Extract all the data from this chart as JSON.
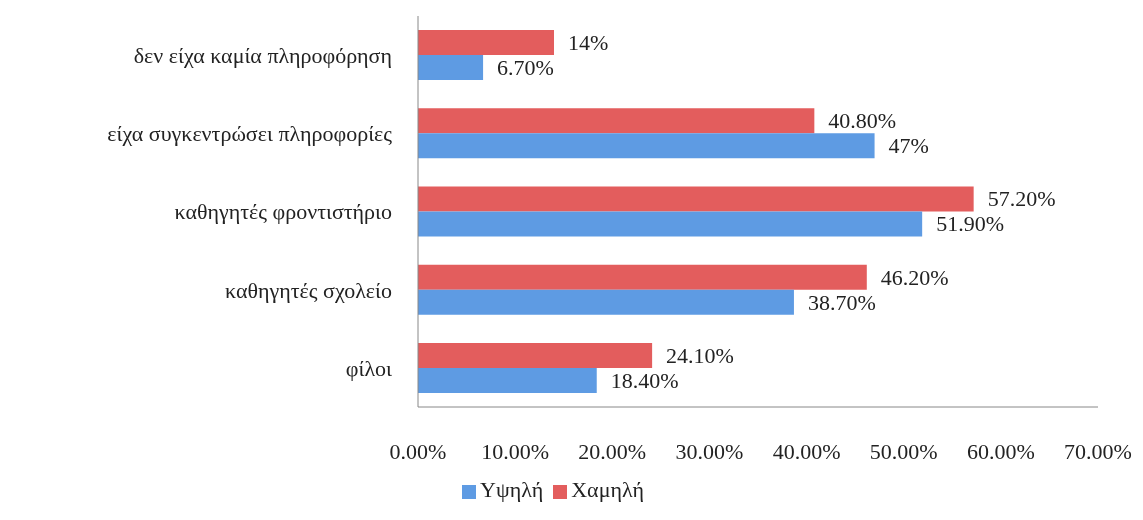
{
  "chart_data": {
    "type": "bar",
    "orientation": "horizontal",
    "categories": [
      "δεν είχα καμία πληροφόρηση",
      "είχα συγκεντρώσει πληροφορίες",
      "καθηγητές φροντιστήριο",
      "καθηγητές σχολείο",
      "φίλοι"
    ],
    "series": [
      {
        "name": "Χαμηλή",
        "color": "#e35d5d",
        "values": [
          14,
          40.8,
          57.2,
          46.2,
          24.1
        ],
        "value_labels": [
          "14%",
          "40.80%",
          "57.20%",
          "46.20%",
          "24.10%"
        ]
      },
      {
        "name": "Υψηλή",
        "color": "#5e9be3",
        "values": [
          6.7,
          47,
          51.9,
          38.7,
          18.4
        ],
        "value_labels": [
          "6.70%",
          "47%",
          "51.90%",
          "38.70%",
          "18.40%"
        ]
      }
    ],
    "xlim": [
      0,
      70
    ],
    "xticks": [
      {
        "value": 0,
        "label": "0.00%"
      },
      {
        "value": 10,
        "label": "10.00%"
      },
      {
        "value": 20,
        "label": "20.00%"
      },
      {
        "value": 30,
        "label": "30.00%"
      },
      {
        "value": 40,
        "label": "40.00%"
      },
      {
        "value": 50,
        "label": "50.00%"
      },
      {
        "value": 60,
        "label": "60.00%"
      },
      {
        "value": 70,
        "label": "70.00%"
      }
    ],
    "grid": false,
    "legend": "bottom"
  }
}
